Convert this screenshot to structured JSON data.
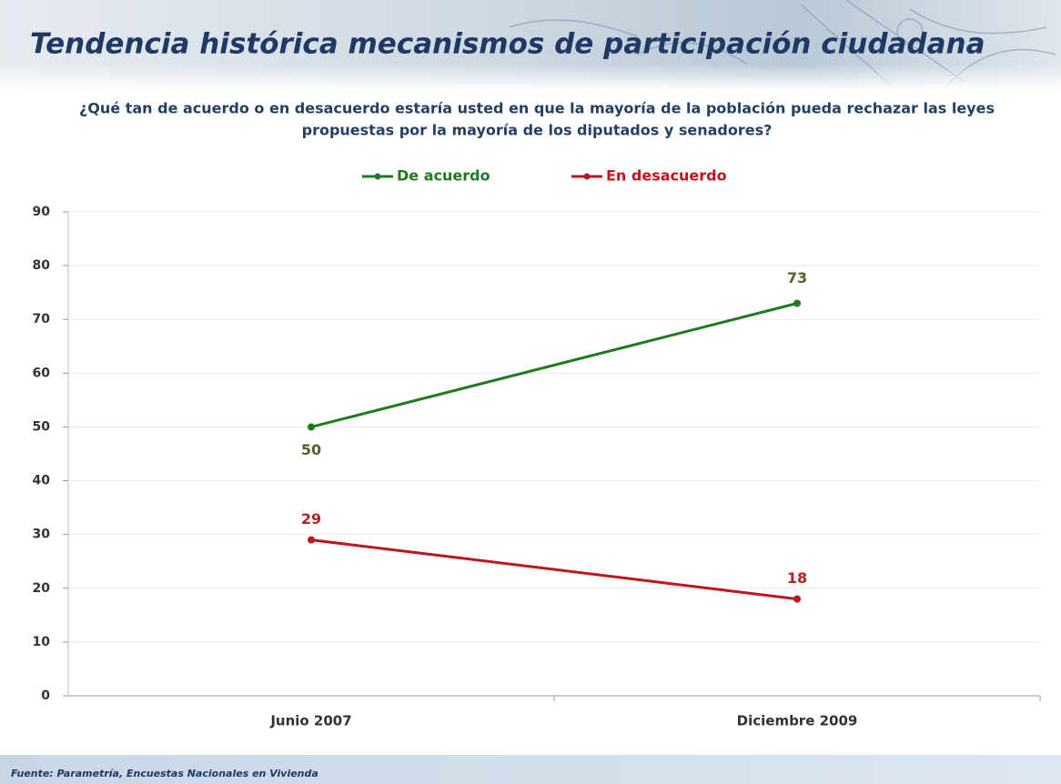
{
  "chart_data": {
    "type": "line",
    "title": "Tendencia histórica mecanismos de participación ciudadana",
    "subtitle": [
      "¿Qué tan de acuerdo o en desacuerdo estaría usted en que la mayoría de la población pueda rechazar las leyes",
      "propuestas por la mayoría de los diputados y senadores?"
    ],
    "source": "Fuente: Parametría, Encuestas Nacionales en Vivienda",
    "categories": [
      "Junio 2007",
      "Diciembre 2009"
    ],
    "series": [
      {
        "name": "De acuerdo",
        "color": "#1e7a1e",
        "label_color": "#4f6228",
        "values": [
          50,
          73
        ]
      },
      {
        "name": "En desacuerdo",
        "color": "#c0141e",
        "label_color": "#b22222",
        "values": [
          29,
          18
        ]
      }
    ],
    "ylim": [
      0,
      90
    ],
    "yticks": [
      0,
      10,
      20,
      30,
      40,
      50,
      60,
      70,
      80,
      90
    ],
    "grid": true,
    "legend": "top"
  }
}
